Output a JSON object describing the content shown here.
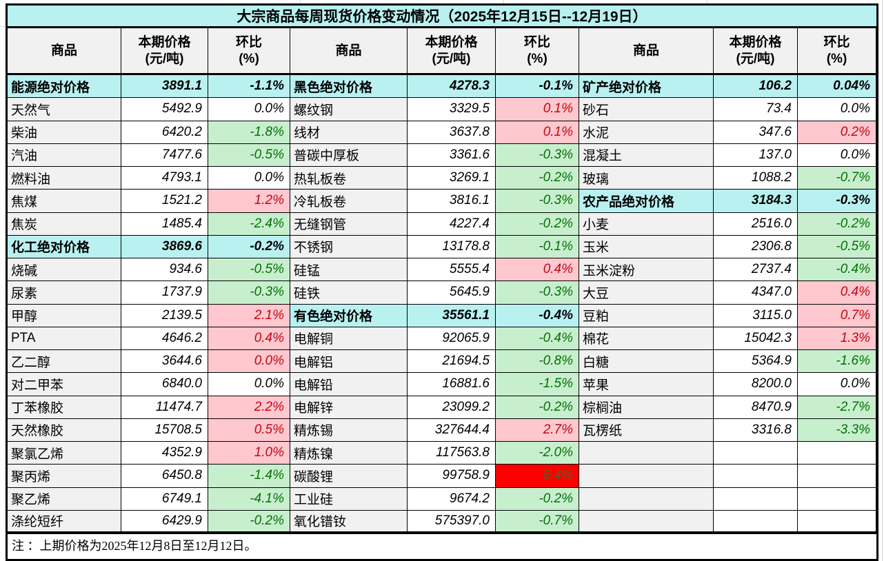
{
  "title": "大宗商品每周现货价格变动情况（2025年12月15日--12月19日）",
  "note": "注 ：上期价格为2025年12月8日至12月12日。",
  "headers": {
    "commodity": "商品",
    "price_line1": "本期价格",
    "price_line2": "(元/吨)",
    "pct_line1": "环比",
    "pct_line2": "(%)"
  },
  "colors": {
    "title_bg": "#B9F1F1",
    "category_bg": "#B9F1F1",
    "header_bg": "#F1F1F1",
    "name_bg": "#F1F1F1",
    "up_bg": "#FFC7CE",
    "up_text": "#BE0712",
    "down_bg": "#C7EFCE",
    "down_text": "#047004",
    "flat_bg": "#FFFFFF",
    "alert_bg": "#FE0000",
    "alert_text": "#4F6228",
    "border": "#000000"
  },
  "groups": [
    {
      "rows": [
        {
          "kind": "category",
          "name": "能源绝对价格",
          "price": "3891.1",
          "pct": "-1.1%",
          "pct_bg": "cyan"
        },
        {
          "kind": "item",
          "name": "天然气",
          "price": "5492.9",
          "pct": "0.0%",
          "pct_bg": "white"
        },
        {
          "kind": "item",
          "name": "柴油",
          "price": "6420.2",
          "pct": "-1.8%",
          "pct_bg": "green"
        },
        {
          "kind": "item",
          "name": "汽油",
          "price": "7477.6",
          "pct": "-0.5%",
          "pct_bg": "green"
        },
        {
          "kind": "item",
          "name": "燃料油",
          "price": "4793.1",
          "pct": "0.0%",
          "pct_bg": "white"
        },
        {
          "kind": "item",
          "name": "焦煤",
          "price": "1521.2",
          "pct": "1.2%",
          "pct_bg": "pink"
        },
        {
          "kind": "item",
          "name": "焦炭",
          "price": "1485.4",
          "pct": "-2.4%",
          "pct_bg": "green"
        },
        {
          "kind": "category",
          "name": "化工绝对价格",
          "price": "3869.6",
          "pct": "-0.2%",
          "pct_bg": "cyan"
        },
        {
          "kind": "item",
          "name": "烧碱",
          "price": "934.6",
          "pct": "-0.5%",
          "pct_bg": "green"
        },
        {
          "kind": "item",
          "name": "尿素",
          "price": "1737.9",
          "pct": "-0.3%",
          "pct_bg": "green"
        },
        {
          "kind": "item",
          "name": "甲醇",
          "price": "2139.5",
          "pct": "2.1%",
          "pct_bg": "pink"
        },
        {
          "kind": "item",
          "name": "PTA",
          "price": "4646.2",
          "pct": "0.4%",
          "pct_bg": "pink"
        },
        {
          "kind": "item",
          "name": "乙二醇",
          "price": "3644.6",
          "pct": "0.0%",
          "pct_bg": "pink"
        },
        {
          "kind": "item",
          "name": "对二甲苯",
          "price": "6840.0",
          "pct": "0.0%",
          "pct_bg": "white"
        },
        {
          "kind": "item",
          "name": "丁苯橡胶",
          "price": "11474.7",
          "pct": "2.2%",
          "pct_bg": "pink"
        },
        {
          "kind": "item",
          "name": "天然橡胶",
          "price": "15708.5",
          "pct": "0.5%",
          "pct_bg": "pink"
        },
        {
          "kind": "item",
          "name": "聚氯乙烯",
          "price": "4352.9",
          "pct": "1.0%",
          "pct_bg": "pink"
        },
        {
          "kind": "item",
          "name": "聚丙烯",
          "price": "6450.8",
          "pct": "-1.4%",
          "pct_bg": "green"
        },
        {
          "kind": "item",
          "name": "聚乙烯",
          "price": "6749.1",
          "pct": "-4.1%",
          "pct_bg": "green"
        },
        {
          "kind": "item",
          "name": "涤纶短纤",
          "price": "6429.9",
          "pct": "-0.2%",
          "pct_bg": "green"
        }
      ]
    },
    {
      "rows": [
        {
          "kind": "category",
          "name": "黑色绝对价格",
          "price": "4278.3",
          "pct": "-0.1%",
          "pct_bg": "cyan"
        },
        {
          "kind": "item",
          "name": "螺纹钢",
          "price": "3329.5",
          "pct": "0.1%",
          "pct_bg": "pink"
        },
        {
          "kind": "item",
          "name": "线材",
          "price": "3637.8",
          "pct": "0.1%",
          "pct_bg": "pink"
        },
        {
          "kind": "item",
          "name": "普碳中厚板",
          "price": "3361.6",
          "pct": "-0.3%",
          "pct_bg": "green"
        },
        {
          "kind": "item",
          "name": "热轧板卷",
          "price": "3269.1",
          "pct": "-0.2%",
          "pct_bg": "green"
        },
        {
          "kind": "item",
          "name": "冷轧板卷",
          "price": "3816.1",
          "pct": "-0.3%",
          "pct_bg": "green"
        },
        {
          "kind": "item",
          "name": "无缝钢管",
          "price": "4227.4",
          "pct": "-0.2%",
          "pct_bg": "green"
        },
        {
          "kind": "item",
          "name": "不锈钢",
          "price": "13178.8",
          "pct": "-0.1%",
          "pct_bg": "green"
        },
        {
          "kind": "item",
          "name": "硅锰",
          "price": "5555.4",
          "pct": "0.4%",
          "pct_bg": "pink"
        },
        {
          "kind": "item",
          "name": "硅铁",
          "price": "5645.9",
          "pct": "-0.3%",
          "pct_bg": "green"
        },
        {
          "kind": "category",
          "name": "有色绝对价格",
          "price": "35561.1",
          "pct": "-0.4%",
          "pct_bg": "cyan"
        },
        {
          "kind": "item",
          "name": "电解铜",
          "price": "92065.9",
          "pct": "-0.4%",
          "pct_bg": "green"
        },
        {
          "kind": "item",
          "name": "电解铝",
          "price": "21694.5",
          "pct": "-0.8%",
          "pct_bg": "green"
        },
        {
          "kind": "item",
          "name": "电解铅",
          "price": "16881.6",
          "pct": "-1.5%",
          "pct_bg": "green"
        },
        {
          "kind": "item",
          "name": "电解锌",
          "price": "23099.2",
          "pct": "-0.2%",
          "pct_bg": "green"
        },
        {
          "kind": "item",
          "name": "精炼锡",
          "price": "327644.4",
          "pct": "2.7%",
          "pct_bg": "pink"
        },
        {
          "kind": "item",
          "name": "精炼镍",
          "price": "117563.8",
          "pct": "-2.0%",
          "pct_bg": "green"
        },
        {
          "kind": "item",
          "name": "碳酸锂",
          "price": "99758.9",
          "pct": "8.4%",
          "pct_bg": "red"
        },
        {
          "kind": "item",
          "name": "工业硅",
          "price": "9674.2",
          "pct": "-0.2%",
          "pct_bg": "green"
        },
        {
          "kind": "item",
          "name": "氧化镨钕",
          "price": "575397.0",
          "pct": "-0.7%",
          "pct_bg": "green"
        }
      ]
    },
    {
      "rows": [
        {
          "kind": "category",
          "name": "矿产绝对价格",
          "price": "106.2",
          "pct": "0.04%",
          "pct_bg": "cyan"
        },
        {
          "kind": "item",
          "name": "砂石",
          "price": "73.4",
          "pct": "0.0%",
          "pct_bg": "white"
        },
        {
          "kind": "item",
          "name": "水泥",
          "price": "347.6",
          "pct": "0.2%",
          "pct_bg": "pink"
        },
        {
          "kind": "item",
          "name": "混凝土",
          "price": "137.0",
          "pct": "0.0%",
          "pct_bg": "white"
        },
        {
          "kind": "item",
          "name": "玻璃",
          "price": "1088.2",
          "pct": "-0.7%",
          "pct_bg": "green"
        },
        {
          "kind": "category",
          "name": "农产品绝对价格",
          "price": "3184.3",
          "pct": "-0.3%",
          "pct_bg": "cyan"
        },
        {
          "kind": "item",
          "name": "小麦",
          "price": "2516.0",
          "pct": "-0.2%",
          "pct_bg": "green"
        },
        {
          "kind": "item",
          "name": "玉米",
          "price": "2306.8",
          "pct": "-0.5%",
          "pct_bg": "green"
        },
        {
          "kind": "item",
          "name": "玉米淀粉",
          "price": "2737.4",
          "pct": "-0.4%",
          "pct_bg": "green"
        },
        {
          "kind": "item",
          "name": "大豆",
          "price": "4347.0",
          "pct": "0.4%",
          "pct_bg": "pink"
        },
        {
          "kind": "item",
          "name": "豆粕",
          "price": "3115.0",
          "pct": "0.7%",
          "pct_bg": "pink"
        },
        {
          "kind": "item",
          "name": "棉花",
          "price": "15042.3",
          "pct": "1.3%",
          "pct_bg": "pink"
        },
        {
          "kind": "item",
          "name": "白糖",
          "price": "5364.9",
          "pct": "-1.6%",
          "pct_bg": "green"
        },
        {
          "kind": "item",
          "name": "苹果",
          "price": "8200.0",
          "pct": "0.0%",
          "pct_bg": "white"
        },
        {
          "kind": "item",
          "name": "棕榈油",
          "price": "8470.9",
          "pct": "-2.7%",
          "pct_bg": "green"
        },
        {
          "kind": "item",
          "name": "瓦楞纸",
          "price": "3316.8",
          "pct": "-3.3%",
          "pct_bg": "green"
        },
        {
          "kind": "empty",
          "name": "",
          "price": "",
          "pct": "",
          "pct_bg": "white"
        },
        {
          "kind": "empty",
          "name": "",
          "price": "",
          "pct": "",
          "pct_bg": "white"
        },
        {
          "kind": "empty",
          "name": "",
          "price": "",
          "pct": "",
          "pct_bg": "white"
        },
        {
          "kind": "empty",
          "name": "",
          "price": "",
          "pct": "",
          "pct_bg": "white"
        }
      ]
    }
  ]
}
